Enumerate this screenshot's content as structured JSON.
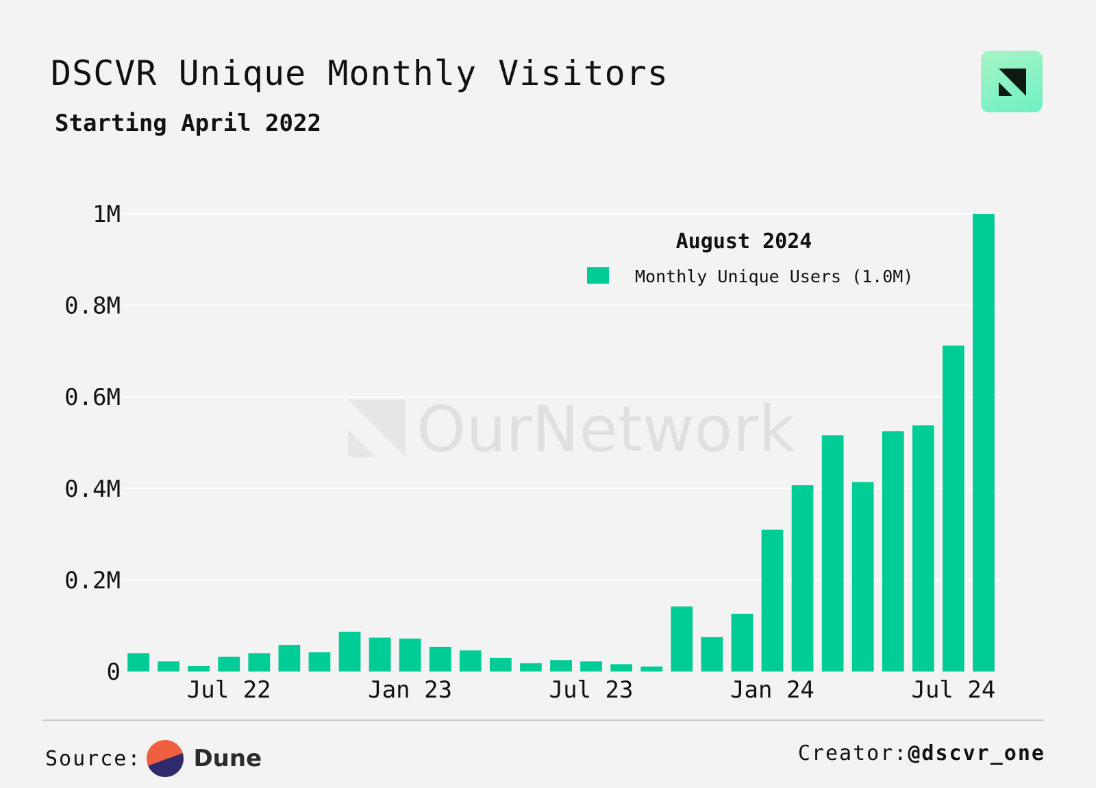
{
  "header": {
    "title": "DSCVR Unique Monthly Visitors",
    "subtitle": "Starting April 2022"
  },
  "logo_icon": "ournetwork-logo-icon",
  "watermark": "OurNetwork",
  "legend": {
    "title": "August 2024",
    "entry": "Monthly Unique Users (1.0M)"
  },
  "footer": {
    "source_label": "Source:",
    "source_name": "Dune",
    "creator_label": "Creator:",
    "creator_handle": "@dscvr_one"
  },
  "colors": {
    "bar": "#00cc96",
    "background": "#f3f3f3",
    "grid": "#ffffff"
  },
  "chart_data": {
    "type": "bar",
    "title": "DSCVR Unique Monthly Visitors",
    "subtitle": "Starting April 2022",
    "xlabel": "",
    "ylabel": "",
    "ylim": [
      0,
      1000000
    ],
    "yticks": [
      0,
      200000,
      400000,
      600000,
      800000,
      1000000
    ],
    "ytick_labels": [
      "0",
      "0.2M",
      "0.4M",
      "0.6M",
      "0.8M",
      "1M"
    ],
    "xtick_labels": [
      {
        "category": "2022-07",
        "label": "Jul 22"
      },
      {
        "category": "2023-01",
        "label": "Jan 23"
      },
      {
        "category": "2023-07",
        "label": "Jul 23"
      },
      {
        "category": "2024-01",
        "label": "Jan 24"
      },
      {
        "category": "2024-07",
        "label": "Jul 24"
      }
    ],
    "grid": true,
    "legend_position": "top-right",
    "categories": [
      "2022-04",
      "2022-05",
      "2022-06",
      "2022-07",
      "2022-08",
      "2022-09",
      "2022-10",
      "2022-11",
      "2022-12",
      "2023-01",
      "2023-02",
      "2023-03",
      "2023-04",
      "2023-05",
      "2023-06",
      "2023-07",
      "2023-08",
      "2023-09",
      "2023-10",
      "2023-11",
      "2023-12",
      "2024-01",
      "2024-02",
      "2024-03",
      "2024-04",
      "2024-05",
      "2024-06",
      "2024-07",
      "2024-08"
    ],
    "series": [
      {
        "name": "Monthly Unique Users",
        "values": [
          40000,
          22000,
          12000,
          32000,
          40000,
          58000,
          42000,
          87000,
          74000,
          72000,
          54000,
          46000,
          30000,
          18000,
          25000,
          22000,
          16000,
          11000,
          142000,
          75000,
          126000,
          310000,
          407000,
          516000,
          414000,
          525000,
          538000,
          712000,
          1000000
        ]
      }
    ]
  }
}
